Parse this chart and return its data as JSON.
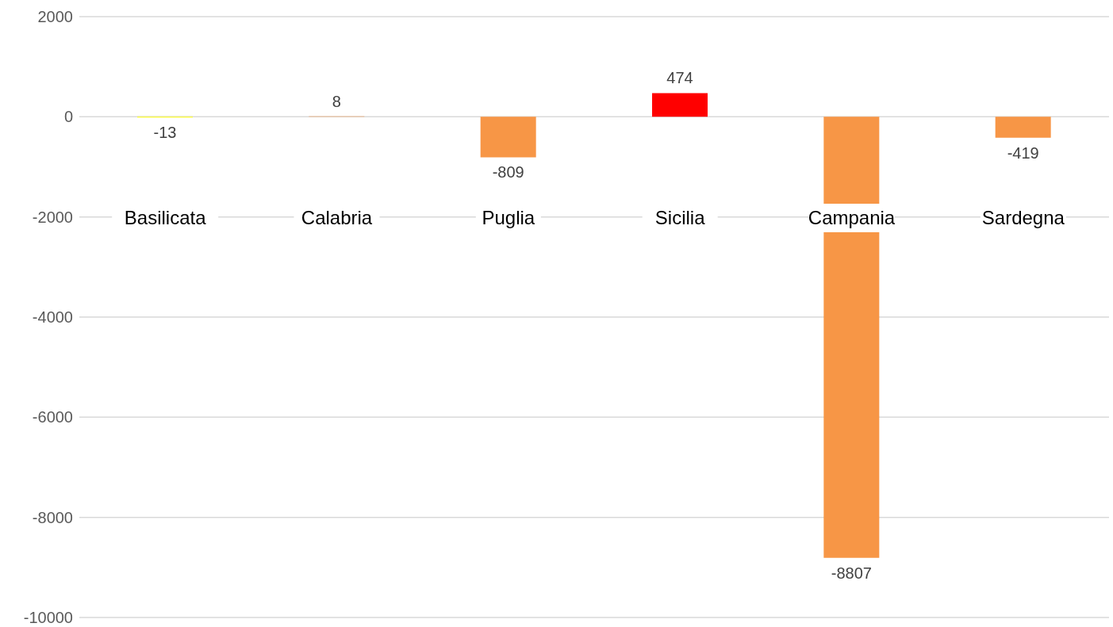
{
  "chart_data": {
    "type": "bar",
    "categories": [
      "Basilicata",
      "Calabria",
      "Puglia",
      "Sicilia",
      "Campania",
      "Sardegna"
    ],
    "values": [
      -13,
      8,
      -809,
      474,
      -8807,
      -419
    ],
    "colors": [
      "#ffff00",
      "#f79646",
      "#f79646",
      "#ff0000",
      "#f79646",
      "#f79646"
    ],
    "ylim": [
      -10000,
      2000
    ],
    "yticks": [
      -10000,
      -8000,
      -6000,
      -4000,
      -2000,
      0,
      2000
    ],
    "grid": "y",
    "data_labels": true
  }
}
